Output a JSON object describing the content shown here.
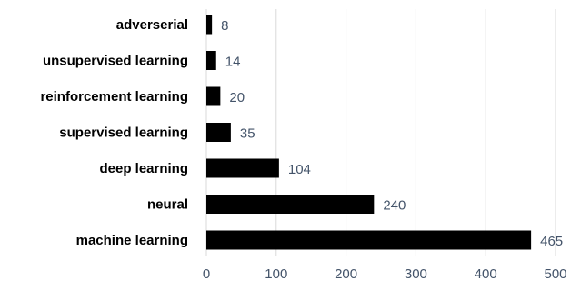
{
  "chart_data": {
    "type": "bar",
    "orientation": "horizontal",
    "categories": [
      "adverserial",
      "unsupervised learning",
      "reinforcement learning",
      "supervised learning",
      "deep learning",
      "neural",
      "machine learning"
    ],
    "values": [
      8,
      14,
      20,
      35,
      104,
      240,
      465
    ],
    "xlim": [
      0,
      500
    ],
    "xticks": [
      0,
      100,
      200,
      300,
      400,
      500
    ],
    "grid": "vertical",
    "legend": "none",
    "bar_color": "#000000",
    "label_color": "#44546a"
  }
}
